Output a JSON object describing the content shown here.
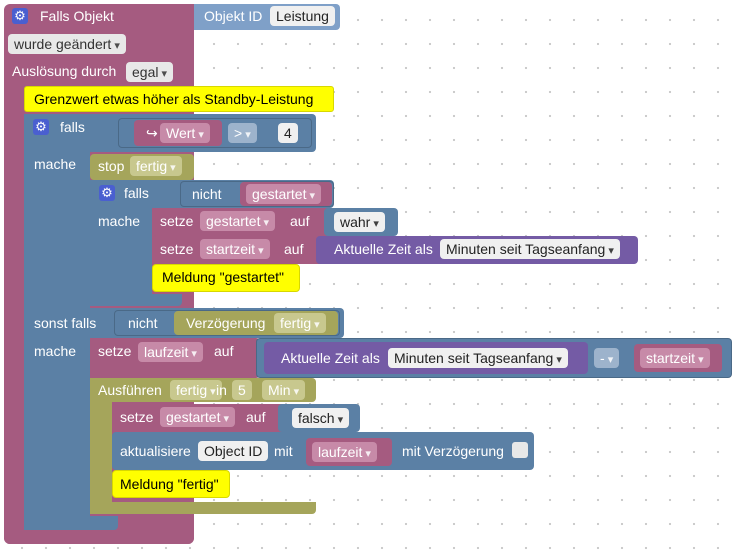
{
  "trigger": {
    "title": "Falls Objekt",
    "object_id_label": "Objekt ID",
    "object_id_value": "Leistung",
    "changed": "wurde geändert",
    "trigger_label": "Auslösung durch",
    "trigger_value": "egal"
  },
  "comment": "Grenzwert etwas höher als Standby-Leistung",
  "if_block": {
    "falls": "falls",
    "mache": "mache",
    "sonst_falls": "sonst falls",
    "value_arrow": "↪",
    "value_label": "Wert",
    "operator": ">",
    "number": "4"
  },
  "stop_block": {
    "label": "stop",
    "value": "fertig"
  },
  "inner_if": {
    "falls": "falls",
    "not": "nicht",
    "var": "gestartet",
    "mache": "mache"
  },
  "set1": {
    "setze": "setze",
    "var": "gestartet",
    "auf": "auf",
    "value": "wahr"
  },
  "set2": {
    "setze": "setze",
    "var": "startzeit",
    "auf": "auf",
    "time_label": "Aktuelle Zeit als",
    "time_format": "Minuten seit Tagseanfang"
  },
  "log1": "Meldung \"gestartet\"",
  "else_if": {
    "not": "nicht",
    "label": "Verzögerung",
    "value": "fertig"
  },
  "set3": {
    "setze": "setze",
    "var": "laufzeit",
    "auf": "auf",
    "time_label": "Aktuelle Zeit als",
    "time_format": "Minuten seit Tagseanfang",
    "op": "-",
    "var2": "startzeit"
  },
  "timeout": {
    "label": "Ausführen",
    "name": "fertig",
    "in": "in",
    "value": "5",
    "unit": "Min"
  },
  "set4": {
    "setze": "setze",
    "var": "gestartet",
    "auf": "auf",
    "value": "falsch"
  },
  "update": {
    "label": "aktualisiere",
    "object": "Object ID",
    "mit": "mit",
    "var": "laufzeit",
    "delay": "mit Verzögerung"
  },
  "log2": "Meldung \"fertig\"",
  "colors": {
    "event": "#a55b80",
    "logic": "#5b80a5",
    "timeout": "#a5a55b",
    "time": "#745ba5",
    "comment": "#ffff00"
  }
}
